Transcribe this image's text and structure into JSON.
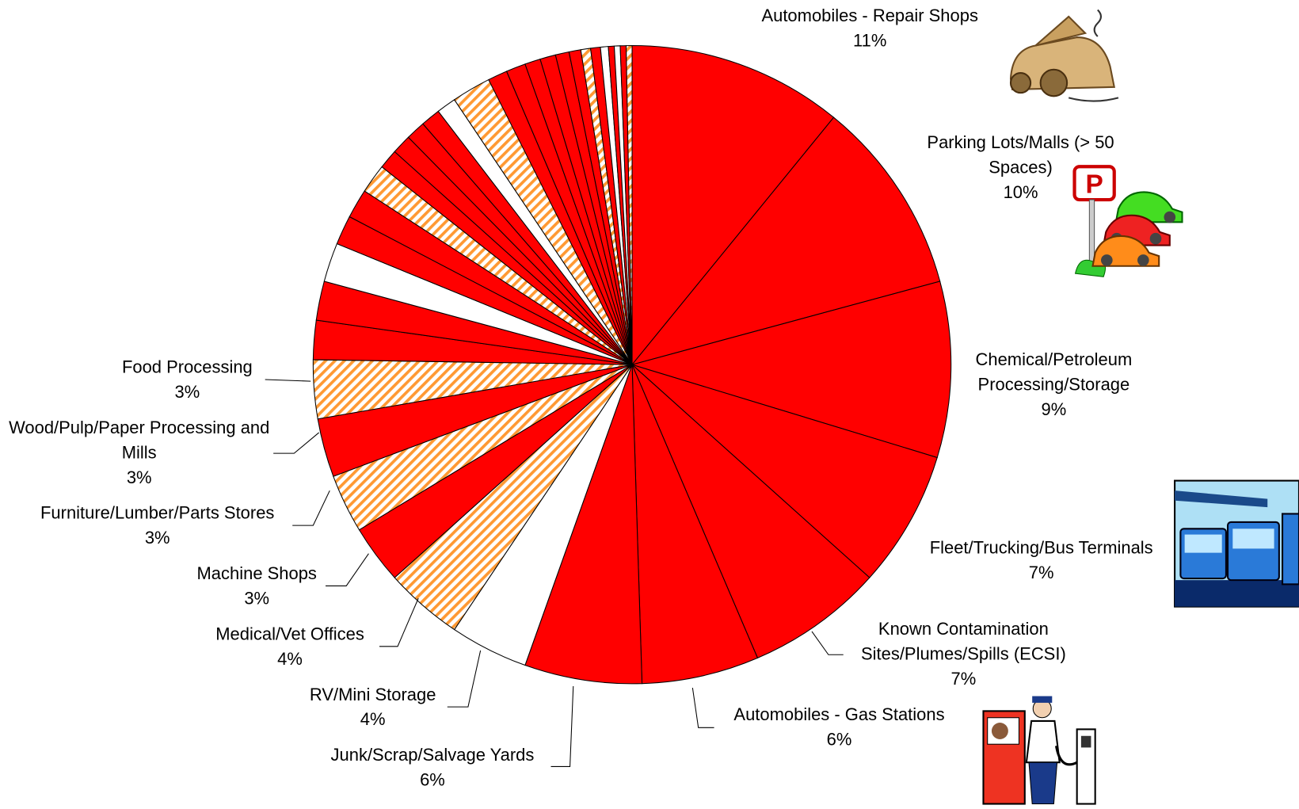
{
  "chart_data": {
    "type": "pie",
    "categories": [
      "Automobiles - Repair Shops",
      "Parking Lots/Malls (> 50 Spaces)",
      "Chemical/Petroleum Processing/Storage",
      "Fleet/Trucking/Bus Terminals",
      "Known Contamination Sites/Plumes/Spills (ECSI)",
      "Automobiles - Gas Stations",
      "Junk/Scrap/Salvage Yards",
      "RV/Mini Storage",
      "Medical/Vet Offices",
      "Machine Shops",
      "Furniture/Lumber/Parts Stores",
      "Wood/Pulp/Paper Processing and Mills",
      "Food Processing",
      null,
      null,
      null,
      null,
      null,
      null,
      null,
      null,
      null,
      null,
      null,
      null,
      null,
      null,
      null,
      null,
      null,
      null,
      null,
      null,
      null,
      null,
      null,
      null,
      null
    ],
    "values": [
      11,
      10,
      9,
      7,
      7,
      6,
      6,
      4,
      4,
      3,
      3,
      3,
      3,
      2,
      2,
      2,
      1.5,
      1.5,
      1.5,
      1,
      1,
      1,
      1,
      1,
      2,
      1,
      1,
      0.8,
      0.8,
      0.7,
      0.6,
      0.5,
      0.5,
      0.4,
      0.3,
      0.3,
      0.3,
      0.3
    ],
    "value_labels": [
      "11%",
      "10%",
      "9%",
      "7%",
      "7%",
      "6%",
      "6%",
      "4%",
      "4%",
      "3%",
      "3%",
      "3%",
      "3%",
      null,
      null,
      null,
      null,
      null,
      null,
      null,
      null,
      null,
      null,
      null,
      null,
      null,
      null,
      null,
      null,
      null,
      null,
      null,
      null,
      null,
      null,
      null,
      null,
      null
    ],
    "colors": [
      "#ff0000",
      "#ff0000",
      "#ff0000",
      "#ff0000",
      "#ff0000",
      "#ff0000",
      "#ff0000",
      "#ffffff",
      "#ff9933",
      "#ff0000",
      "#ff9933",
      "#ff0000",
      "#ff9933",
      "#ff0000",
      "#ff0000",
      "#ffffff",
      "#ff0000",
      "#ff0000",
      "#ff9933",
      "#ff0000",
      "#ff0000",
      "#ff0000",
      "#ff0000",
      "#ffffff",
      "#ff9933",
      "#ff0000",
      "#ff0000",
      "#ff0000",
      "#ff0000",
      "#ff0000",
      "#ff0000",
      "#ff9933",
      "#ff0000",
      "#ffffff",
      "#ff0000",
      "#ffffff",
      "#ff0000",
      "#ff9933"
    ],
    "hatched": [
      false,
      false,
      false,
      false,
      false,
      false,
      false,
      false,
      true,
      false,
      true,
      false,
      true,
      false,
      false,
      false,
      false,
      false,
      true,
      false,
      false,
      false,
      false,
      false,
      true,
      false,
      false,
      false,
      false,
      false,
      false,
      true,
      false,
      false,
      false,
      false,
      false,
      true
    ]
  }
}
